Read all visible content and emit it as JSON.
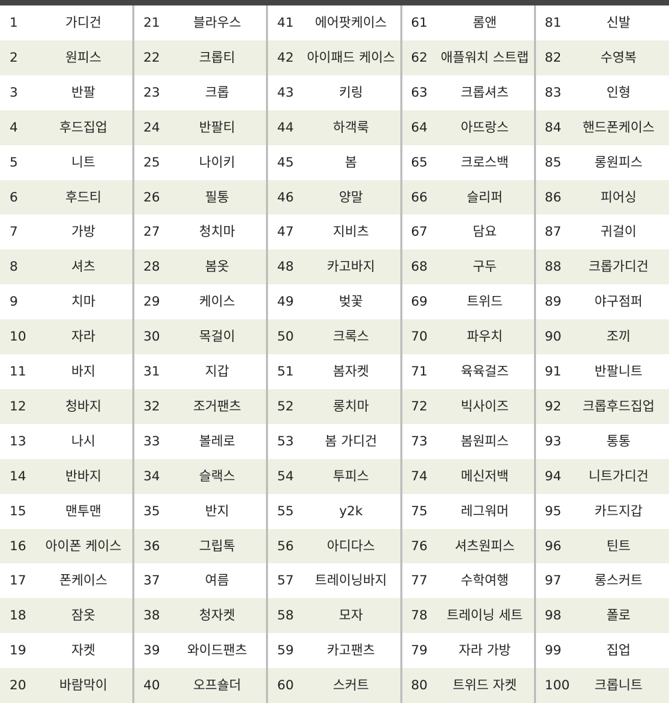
{
  "table": {
    "columns": [
      {
        "ranks": [
          1,
          2,
          3,
          4,
          5,
          6,
          7,
          8,
          9,
          10,
          11,
          12,
          13,
          14,
          15,
          16,
          17,
          18,
          19,
          20
        ],
        "keywords": [
          "가디건",
          "원피스",
          "반팔",
          "후드집업",
          "니트",
          "후드티",
          "가방",
          "셔츠",
          "치마",
          "자라",
          "바지",
          "청바지",
          "나시",
          "반바지",
          "맨투맨",
          "아이폰 케이스",
          "폰케이스",
          "잠옷",
          "자켓",
          "바람막이"
        ]
      },
      {
        "ranks": [
          21,
          22,
          23,
          24,
          25,
          26,
          27,
          28,
          29,
          30,
          31,
          32,
          33,
          34,
          35,
          36,
          37,
          38,
          39,
          40
        ],
        "keywords": [
          "블라우스",
          "크롭티",
          "크롭",
          "반팔티",
          "나이키",
          "필통",
          "청치마",
          "봄옷",
          "케이스",
          "목걸이",
          "지갑",
          "조거팬츠",
          "볼레로",
          "슬랙스",
          "반지",
          "그립톡",
          "여름",
          "청자켓",
          "와이드팬츠",
          "오프숄더"
        ]
      },
      {
        "ranks": [
          41,
          42,
          43,
          44,
          45,
          46,
          47,
          48,
          49,
          50,
          51,
          52,
          53,
          54,
          55,
          56,
          57,
          58,
          59,
          60
        ],
        "keywords": [
          "에어팟케이스",
          "아이패드 케이스",
          "키링",
          "하객룩",
          "봄",
          "양말",
          "지비츠",
          "카고바지",
          "벚꽃",
          "크록스",
          "봄자켓",
          "롱치마",
          "봄 가디건",
          "투피스",
          "y2k",
          "아디다스",
          "트레이닝바지",
          "모자",
          "카고팬츠",
          "스커트"
        ]
      },
      {
        "ranks": [
          61,
          62,
          63,
          64,
          65,
          66,
          67,
          68,
          69,
          70,
          71,
          72,
          73,
          74,
          75,
          76,
          77,
          78,
          79,
          80
        ],
        "keywords": [
          "롬앤",
          "애플워치 스트랩",
          "크롭셔츠",
          "아뜨랑스",
          "크로스백",
          "슬리퍼",
          "담요",
          "구두",
          "트위드",
          "파우치",
          "육육걸즈",
          "빅사이즈",
          "봄원피스",
          "메신저백",
          "레그워머",
          "셔츠원피스",
          "수학여행",
          "트레이닝 세트",
          "자라 가방",
          "트위드 자켓"
        ]
      },
      {
        "ranks": [
          81,
          82,
          83,
          84,
          85,
          86,
          87,
          88,
          89,
          90,
          91,
          92,
          93,
          94,
          95,
          96,
          97,
          98,
          99,
          100
        ],
        "keywords": [
          "신발",
          "수영복",
          "인형",
          "핸드폰케이스",
          "롱원피스",
          "피어싱",
          "귀걸이",
          "크롭가디건",
          "야구점퍼",
          "조끼",
          "반팔니트",
          "크롭후드집업",
          "통통",
          "니트가디건",
          "카드지갑",
          "틴트",
          "롱스커트",
          "폴로",
          "집업",
          "크롭니트"
        ]
      }
    ]
  }
}
